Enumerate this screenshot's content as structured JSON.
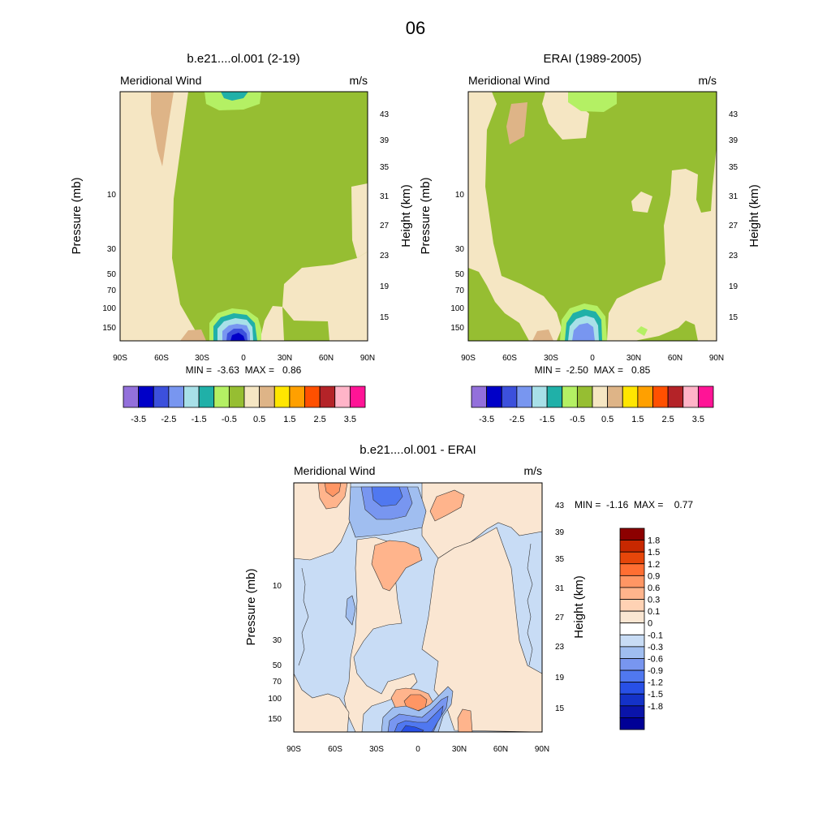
{
  "page_title": "06",
  "chart_data": [
    {
      "type": "heatmap",
      "panel": "top-left",
      "title": "b.e21....ol.001 (2-19)",
      "left_label": "Meridional Wind",
      "right_label": "m/s",
      "ylabel": "Pressure (mb)",
      "ylabel_right": "Height (km)",
      "x_ticks": [
        "90S",
        "60S",
        "30S",
        "0",
        "30N",
        "60N",
        "90N"
      ],
      "y_ticks_pressure": [
        "10",
        "30",
        "50",
        "70",
        "100",
        "150"
      ],
      "y_ticks_height": [
        "43",
        "39",
        "35",
        "31",
        "27",
        "23",
        "19",
        "15"
      ],
      "stats": "MIN =  -3.63  MAX =   0.86",
      "min": -3.63,
      "max": 0.86,
      "colorbar_labels": [
        "-3.5",
        "-2.5",
        "-1.5",
        "-0.5",
        "0.5",
        "1.5",
        "2.5",
        "3.5"
      ],
      "colorbar_colors": [
        "#9370db",
        "#0000c8",
        "#3c50dc",
        "#7896f0",
        "#a8e0e8",
        "#20b0a8",
        "#b4f064",
        "#96be32",
        "#f5e6c3",
        "#deb487",
        "#ffe600",
        "#ffa000",
        "#ff5000",
        "#b42328",
        "#ffb4c8",
        "#ff1496"
      ]
    },
    {
      "type": "heatmap",
      "panel": "top-right",
      "title": "ERAI (1989-2005)",
      "left_label": "Meridional Wind",
      "right_label": "m/s",
      "ylabel": "Pressure (mb)",
      "ylabel_right": "Height (km)",
      "x_ticks": [
        "90S",
        "60S",
        "30S",
        "0",
        "30N",
        "60N",
        "90N"
      ],
      "y_ticks_pressure": [
        "10",
        "30",
        "50",
        "70",
        "100",
        "150"
      ],
      "y_ticks_height": [
        "43",
        "39",
        "35",
        "31",
        "27",
        "23",
        "19",
        "15"
      ],
      "stats": "MIN =  -2.50  MAX =   0.85",
      "min": -2.5,
      "max": 0.85,
      "colorbar_labels": [
        "-3.5",
        "-2.5",
        "-1.5",
        "-0.5",
        "0.5",
        "1.5",
        "2.5",
        "3.5"
      ],
      "colorbar_colors": [
        "#9370db",
        "#0000c8",
        "#3c50dc",
        "#7896f0",
        "#a8e0e8",
        "#20b0a8",
        "#b4f064",
        "#96be32",
        "#f5e6c3",
        "#deb487",
        "#ffe600",
        "#ffa000",
        "#ff5000",
        "#b42328",
        "#ffb4c8",
        "#ff1496"
      ]
    },
    {
      "type": "heatmap",
      "panel": "bottom",
      "title": "b.e21....ol.001 - ERAI",
      "left_label": "Meridional Wind",
      "right_label": "m/s",
      "ylabel": "Pressure (mb)",
      "ylabel_right": "Height (km)",
      "x_ticks": [
        "90S",
        "60S",
        "30S",
        "0",
        "30N",
        "60N",
        "90N"
      ],
      "y_ticks_pressure": [
        "10",
        "30",
        "50",
        "70",
        "100",
        "150"
      ],
      "y_ticks_height": [
        "43",
        "39",
        "35",
        "31",
        "27",
        "23",
        "19",
        "15"
      ],
      "stats": "MIN =  -1.16  MAX =    0.77",
      "min": -1.16,
      "max": 0.77,
      "colorbar_labels": [
        "1.8",
        "1.5",
        "1.2",
        "0.9",
        "0.6",
        "0.3",
        "0.1",
        "0",
        "-0.1",
        "-0.3",
        "-0.6",
        "-0.9",
        "-1.2",
        "-1.5",
        "-1.8"
      ],
      "colorbar_colors": [
        "#8c0000",
        "#c82800",
        "#e6460a",
        "#ff6e32",
        "#ff9664",
        "#ffb48c",
        "#ffd2b4",
        "#fae6d2",
        "#ffffff",
        "#c8dcf5",
        "#a0bef0",
        "#7896f0",
        "#5078f0",
        "#2850e6",
        "#1432c8",
        "#0a14aa",
        "#000096"
      ]
    }
  ]
}
